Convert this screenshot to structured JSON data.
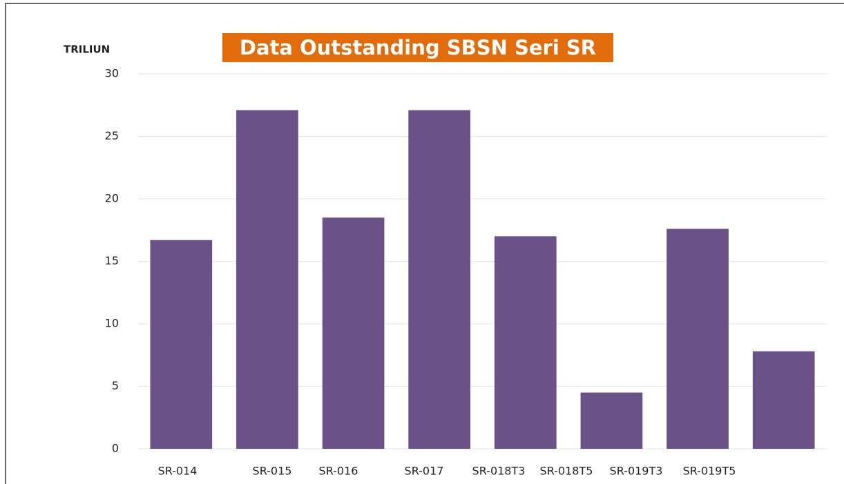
{
  "chart_data": {
    "type": "bar",
    "title": "Data Outstanding SBSN Seri SR",
    "y_axis_label": "TRILIUN",
    "categories": [
      "SR-014",
      "SR-015",
      "SR-016",
      "SR-017",
      "SR-018T3",
      "SR-018T5",
      "SR-019T3",
      "SR-019T5"
    ],
    "values": [
      16.7,
      27.1,
      18.5,
      27.1,
      17.0,
      4.5,
      17.6,
      7.8
    ],
    "color": "#6a5288",
    "ylim": [
      0,
      30
    ],
    "yticks": [
      0,
      5,
      10,
      15,
      20,
      25,
      30
    ],
    "grid": true
  }
}
